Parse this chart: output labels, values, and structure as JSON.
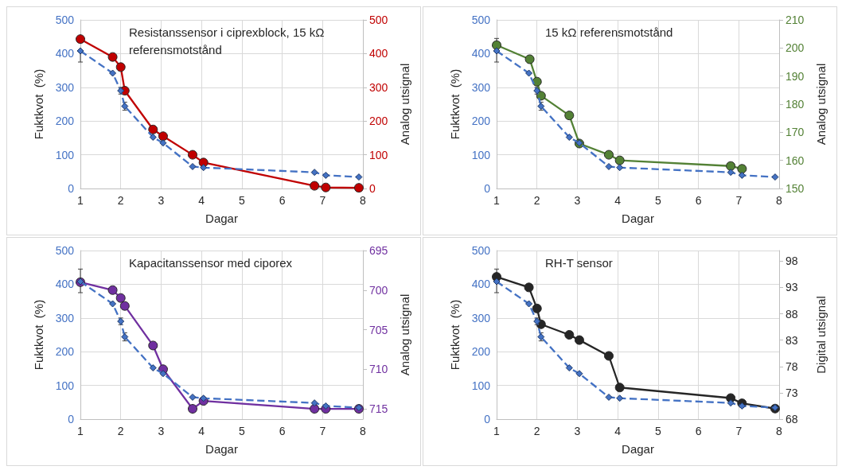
{
  "chart_data": [
    {
      "type": "line",
      "title": "Resistanssensor i ciprexblock, 15 kΩ referensmotstånd",
      "xlabel": "Dagar",
      "ylabel": "Fuktkvot  (%)",
      "y2label": "Analog utsignal",
      "x": [
        1,
        1.8,
        2.0,
        2.1,
        2.8,
        3.05,
        3.78,
        4.05,
        6.8,
        7.08,
        7.9
      ],
      "xlim": [
        1,
        8
      ],
      "xticks": [
        1,
        2,
        3,
        4,
        5,
        6,
        7,
        8
      ],
      "ylim": [
        0,
        500
      ],
      "yticks": [
        0,
        100,
        200,
        300,
        400,
        500
      ],
      "y2lim": [
        0,
        500
      ],
      "y2ticks": [
        0,
        100,
        200,
        300,
        400,
        500
      ],
      "grid": true,
      "series": [
        {
          "color": "#4472c4",
          "marker": "diamond",
          "line_style": "dashed",
          "values": [
            408,
            342,
            290,
            244,
            152,
            135,
            65,
            62,
            48,
            39,
            34
          ],
          "errors": [
            [
              375,
              408
            ],
            null,
            10,
            12,
            null,
            null,
            null,
            null,
            null,
            null,
            null
          ]
        },
        {
          "color": "#c00000",
          "marker": "circle",
          "line_style": "solid",
          "axis": "y2",
          "values": [
            443,
            390,
            360,
            290,
            175,
            155,
            100,
            77,
            8,
            3,
            2
          ]
        }
      ]
    },
    {
      "type": "line",
      "title": "15 kΩ referensmotstånd",
      "xlabel": "Dagar",
      "ylabel": "Fuktkvot  (%)",
      "y2label": "Analog utsignal",
      "x": [
        1,
        1.8,
        2.0,
        2.1,
        2.8,
        3.05,
        3.78,
        4.05,
        6.8,
        7.08,
        7.9
      ],
      "xlim": [
        1,
        8
      ],
      "xticks": [
        1,
        2,
        3,
        4,
        5,
        6,
        7,
        8
      ],
      "ylim": [
        0,
        500
      ],
      "yticks": [
        0,
        100,
        200,
        300,
        400,
        500
      ],
      "y2lim": [
        150,
        210
      ],
      "y2ticks": [
        150,
        160,
        170,
        180,
        190,
        200,
        210
      ],
      "grid": true,
      "series": [
        {
          "color": "#4472c4",
          "marker": "diamond",
          "line_style": "dashed",
          "values": [
            408,
            342,
            290,
            244,
            152,
            135,
            65,
            62,
            48,
            39,
            34
          ],
          "errors": [
            [
              375,
              445
            ],
            null,
            10,
            12,
            null,
            null,
            null,
            null,
            null,
            null,
            null
          ]
        },
        {
          "color": "#538135",
          "marker": "circle",
          "line_style": "solid",
          "axis": "y2",
          "x": [
            1,
            1.82,
            2.0,
            2.1,
            2.8,
            3.05,
            3.78,
            4.05,
            6.8,
            7.08
          ],
          "values": [
            201,
            196,
            188,
            183,
            176,
            166,
            162,
            160,
            158,
            157
          ]
        }
      ]
    },
    {
      "type": "line",
      "title": "Kapacitanssensor med ciporex",
      "xlabel": "Dagar",
      "ylabel": "Fuktkvot  (%)",
      "y2label": "Analog utsignal",
      "x": [
        1,
        1.8,
        2.0,
        2.1,
        2.8,
        3.05,
        3.78,
        4.05,
        6.8,
        7.08,
        7.9
      ],
      "xlim": [
        1,
        8
      ],
      "xticks": [
        1,
        2,
        3,
        4,
        5,
        6,
        7,
        8
      ],
      "ylim": [
        0,
        500
      ],
      "yticks": [
        0,
        100,
        200,
        300,
        400,
        500
      ],
      "y2lim": [
        716.3,
        695
      ],
      "y2ticks": [
        695,
        700,
        705,
        710,
        715
      ],
      "grid": true,
      "series": [
        {
          "color": "#4472c4",
          "marker": "diamond",
          "line_style": "dashed",
          "values": [
            408,
            342,
            290,
            244,
            152,
            135,
            65,
            62,
            48,
            39,
            34
          ],
          "errors": [
            [
              375,
              445
            ],
            null,
            10,
            12,
            null,
            null,
            null,
            null,
            null,
            null,
            null
          ]
        },
        {
          "color": "#7030a0",
          "marker": "circle",
          "line_style": "solid",
          "axis": "y2",
          "values": [
            699,
            700,
            701,
            702,
            707,
            710,
            715,
            714,
            715,
            715,
            715
          ]
        }
      ]
    },
    {
      "type": "line",
      "title": "RH-T sensor",
      "xlabel": "Dagar",
      "ylabel": "Fuktkvot  (%)",
      "y2label": "Digital utsignal",
      "x": [
        1,
        1.8,
        2.0,
        2.1,
        2.8,
        3.05,
        3.78,
        4.05,
        6.8,
        7.08,
        7.9
      ],
      "xlim": [
        1,
        8
      ],
      "xticks": [
        1,
        2,
        3,
        4,
        5,
        6,
        7,
        8
      ],
      "ylim": [
        0,
        500
      ],
      "yticks": [
        0,
        100,
        200,
        300,
        400,
        500
      ],
      "y2lim": [
        68,
        100
      ],
      "y2ticks": [
        68,
        73,
        78,
        83,
        88,
        93,
        98
      ],
      "grid": true,
      "series": [
        {
          "color": "#4472c4",
          "marker": "diamond",
          "line_style": "dashed",
          "values": [
            408,
            342,
            290,
            244,
            152,
            135,
            65,
            62,
            48,
            39,
            34
          ],
          "errors": [
            [
              375,
              445
            ],
            null,
            10,
            12,
            null,
            null,
            null,
            null,
            null,
            null,
            null
          ]
        },
        {
          "color": "#262626",
          "marker": "circle",
          "line_style": "solid",
          "axis": "y2",
          "values": [
            95,
            93,
            89,
            86,
            84,
            83,
            80,
            74,
            72,
            71,
            70
          ]
        }
      ]
    }
  ]
}
